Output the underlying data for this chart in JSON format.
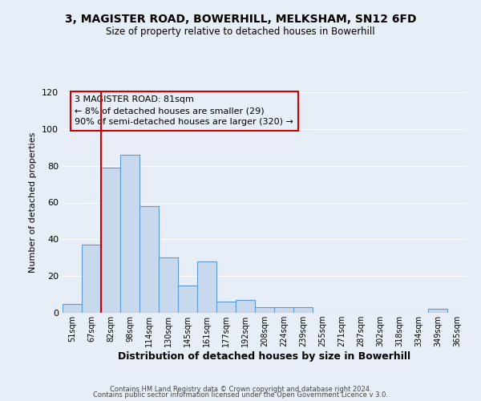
{
  "title_line1": "3, MAGISTER ROAD, BOWERHILL, MELKSHAM, SN12 6FD",
  "title_line2": "Size of property relative to detached houses in Bowerhill",
  "xlabel": "Distribution of detached houses by size in Bowerhill",
  "ylabel": "Number of detached properties",
  "bar_labels": [
    "51sqm",
    "67sqm",
    "82sqm",
    "98sqm",
    "114sqm",
    "130sqm",
    "145sqm",
    "161sqm",
    "177sqm",
    "192sqm",
    "208sqm",
    "224sqm",
    "239sqm",
    "255sqm",
    "271sqm",
    "287sqm",
    "302sqm",
    "318sqm",
    "334sqm",
    "349sqm",
    "365sqm"
  ],
  "bar_values": [
    5,
    37,
    79,
    86,
    58,
    30,
    15,
    28,
    6,
    7,
    3,
    3,
    3,
    0,
    0,
    0,
    0,
    0,
    0,
    2,
    0
  ],
  "bar_color": "#c8d9ed",
  "bar_edge_color": "#5b9bd5",
  "highlight_bar_index": 2,
  "highlight_color": "#cc0000",
  "ylim": [
    0,
    120
  ],
  "yticks": [
    0,
    20,
    40,
    60,
    80,
    100,
    120
  ],
  "annotation_title": "3 MAGISTER ROAD: 81sqm",
  "annotation_line1": "← 8% of detached houses are smaller (29)",
  "annotation_line2": "90% of semi-detached houses are larger (320) →",
  "annotation_box_color": "#cc0000",
  "footer_line1": "Contains HM Land Registry data © Crown copyright and database right 2024.",
  "footer_line2": "Contains public sector information licensed under the Open Government Licence v 3.0.",
  "background_color": "#e8eef7",
  "grid_color": "#ffffff"
}
